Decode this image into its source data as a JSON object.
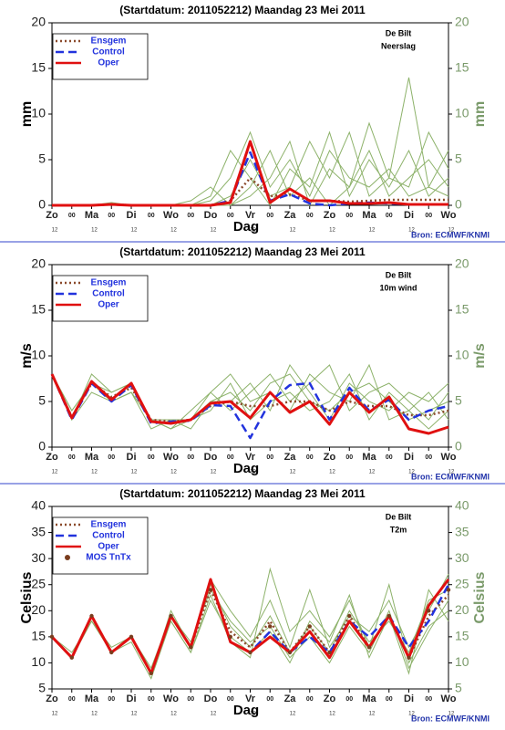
{
  "chart_data": [
    {
      "type": "line",
      "title": "(Startdatum: 2011052212)   Maandag   23 Mei       2011",
      "location": "De Bilt",
      "variable": "Neerslag",
      "ylabel": "mm",
      "xlabel": "Dag",
      "source": "Bron: ECMWF/KNMI",
      "x": [
        0,
        12,
        24,
        36,
        48,
        60,
        72,
        84,
        96,
        108,
        120,
        132,
        144,
        156,
        168,
        180,
        192,
        204,
        216,
        228,
        240
      ],
      "xlim": [
        0,
        240
      ],
      "xticks": [
        {
          "value": 0,
          "label": "Zo"
        },
        {
          "value": 12,
          "label": "00"
        },
        {
          "value": 24,
          "label": "Ma"
        },
        {
          "value": 36,
          "label": "00"
        },
        {
          "value": 48,
          "label": "Di"
        },
        {
          "value": 60,
          "label": "00"
        },
        {
          "value": 72,
          "label": "Wo"
        },
        {
          "value": 84,
          "label": "00"
        },
        {
          "value": 96,
          "label": "Do"
        },
        {
          "value": 108,
          "label": "00"
        },
        {
          "value": 120,
          "label": "Vr"
        },
        {
          "value": 132,
          "label": "00"
        },
        {
          "value": 144,
          "label": "Za"
        },
        {
          "value": 156,
          "label": "00"
        },
        {
          "value": 168,
          "label": "Zo"
        },
        {
          "value": 180,
          "label": "00"
        },
        {
          "value": 192,
          "label": "Ma"
        },
        {
          "value": 204,
          "label": "00"
        },
        {
          "value": 216,
          "label": "Di"
        },
        {
          "value": 228,
          "label": "00"
        },
        {
          "value": 240,
          "label": "Wo"
        }
      ],
      "hour_labels": [
        {
          "value": 0,
          "label": "12"
        },
        {
          "value": 24,
          "label": "12"
        },
        {
          "value": 48,
          "label": "12"
        },
        {
          "value": 72,
          "label": "12"
        },
        {
          "value": 96,
          "label": "12"
        },
        {
          "value": 120,
          "label": "12"
        },
        {
          "value": 144,
          "label": "12"
        },
        {
          "value": 168,
          "label": "12"
        },
        {
          "value": 192,
          "label": "12"
        },
        {
          "value": 216,
          "label": "12"
        },
        {
          "value": 240,
          "label": "12"
        }
      ],
      "ylim": [
        0,
        20
      ],
      "yticks": [
        0,
        5,
        10,
        15,
        20
      ],
      "y2lim": [
        0,
        20
      ],
      "y2ticks": [
        0,
        5,
        10,
        15,
        20
      ],
      "members": {
        "color": "#8db26a",
        "values": [
          [
            0,
            0,
            0,
            0,
            0,
            0,
            0,
            0,
            0.5,
            3,
            8,
            2,
            5,
            1,
            6,
            3,
            2,
            4,
            1,
            2,
            1
          ],
          [
            0,
            0,
            0,
            0.3,
            0,
            0,
            0,
            0,
            0,
            1,
            5,
            1,
            2,
            7,
            3,
            8,
            1,
            3,
            14,
            2,
            6
          ],
          [
            0,
            0,
            0,
            0,
            0,
            0,
            0,
            0,
            0,
            0,
            2,
            6,
            1,
            3,
            0,
            2,
            6,
            1,
            3,
            5,
            2
          ],
          [
            0,
            0,
            0,
            0,
            0,
            0,
            0,
            0,
            1,
            6,
            3,
            0,
            4,
            2,
            8,
            1,
            5,
            2,
            6,
            1,
            3
          ],
          [
            0,
            0,
            0,
            0,
            0,
            0,
            0,
            0.5,
            2,
            0,
            1,
            3,
            7,
            0,
            4,
            2,
            9,
            3,
            2,
            8,
            4
          ]
        ]
      },
      "series": [
        {
          "name": "Ensgem",
          "color": "#8b4a2b",
          "style": "dotted",
          "values": [
            0,
            0,
            0,
            0.1,
            0,
            0,
            0,
            0,
            0,
            0.5,
            3,
            1,
            1.2,
            0.5,
            0.5,
            0.4,
            0.5,
            0.6,
            0.6,
            0.6,
            0.6
          ]
        },
        {
          "name": "Control",
          "color": "#2233dd",
          "style": "dashed",
          "values": [
            0,
            0,
            0,
            0.1,
            0,
            0,
            0,
            0,
            0,
            0.5,
            5.8,
            0.5,
            1.2,
            0.2,
            0,
            0.2,
            0.3,
            0.2,
            0.1,
            0.1,
            0.1
          ]
        },
        {
          "name": "Oper",
          "color": "#e01010",
          "style": "solid",
          "values": [
            0,
            0,
            0,
            0.1,
            0,
            0,
            0,
            0,
            0,
            0.3,
            7,
            0.3,
            1.8,
            0.5,
            0.5,
            0.2,
            0.2,
            0.3,
            0.1,
            0.1,
            0.1
          ]
        }
      ]
    },
    {
      "type": "line",
      "title": "(Startdatum: 2011052212)   Maandag   23 Mei       2011",
      "location": "De Bilt",
      "variable": "10m wind",
      "ylabel": "m/s",
      "xlabel": "Dag",
      "source": "Bron: ECMWF/KNMI",
      "x": [
        0,
        12,
        24,
        36,
        48,
        60,
        72,
        84,
        96,
        108,
        120,
        132,
        144,
        156,
        168,
        180,
        192,
        204,
        216,
        228,
        240
      ],
      "xlim": [
        0,
        240
      ],
      "xticks": [
        {
          "value": 0,
          "label": "Zo"
        },
        {
          "value": 12,
          "label": "00"
        },
        {
          "value": 24,
          "label": "Ma"
        },
        {
          "value": 36,
          "label": "00"
        },
        {
          "value": 48,
          "label": "Di"
        },
        {
          "value": 60,
          "label": "00"
        },
        {
          "value": 72,
          "label": "Wo"
        },
        {
          "value": 84,
          "label": "00"
        },
        {
          "value": 96,
          "label": "Do"
        },
        {
          "value": 108,
          "label": "00"
        },
        {
          "value": 120,
          "label": "Vr"
        },
        {
          "value": 132,
          "label": "00"
        },
        {
          "value": 144,
          "label": "Za"
        },
        {
          "value": 156,
          "label": "00"
        },
        {
          "value": 168,
          "label": "Zo"
        },
        {
          "value": 180,
          "label": "00"
        },
        {
          "value": 192,
          "label": "Ma"
        },
        {
          "value": 204,
          "label": "00"
        },
        {
          "value": 216,
          "label": "Di"
        },
        {
          "value": 228,
          "label": "00"
        },
        {
          "value": 240,
          "label": "Wo"
        }
      ],
      "hour_labels": [
        {
          "value": 0,
          "label": "12"
        },
        {
          "value": 24,
          "label": "12"
        },
        {
          "value": 48,
          "label": "12"
        },
        {
          "value": 72,
          "label": "12"
        },
        {
          "value": 96,
          "label": "12"
        },
        {
          "value": 120,
          "label": "12"
        },
        {
          "value": 144,
          "label": "12"
        },
        {
          "value": 168,
          "label": "12"
        },
        {
          "value": 192,
          "label": "12"
        },
        {
          "value": 216,
          "label": "12"
        },
        {
          "value": 240,
          "label": "12"
        }
      ],
      "ylim": [
        0,
        20
      ],
      "yticks": [
        0,
        5,
        10,
        15,
        20
      ],
      "y2lim": [
        0,
        20
      ],
      "y2ticks": [
        0,
        5,
        10,
        15,
        20
      ],
      "members": {
        "color": "#8db26a",
        "values": [
          [
            8,
            3,
            7,
            5,
            6,
            3,
            3,
            3,
            5,
            6,
            4,
            7,
            8,
            5,
            4,
            6,
            7,
            5,
            3,
            4,
            5
          ],
          [
            8,
            4,
            7,
            6,
            7,
            3,
            2,
            4,
            6,
            4,
            6,
            8,
            5,
            7,
            9,
            4,
            6,
            7,
            5,
            3,
            6
          ],
          [
            8,
            3,
            6,
            5,
            6,
            2,
            3,
            3,
            4,
            7,
            3,
            5,
            6,
            4,
            5,
            8,
            3,
            6,
            4,
            6,
            3
          ],
          [
            8,
            3,
            8,
            6,
            7,
            3,
            3,
            2,
            5,
            5,
            7,
            4,
            9,
            6,
            3,
            7,
            5,
            4,
            6,
            5,
            7
          ],
          [
            8,
            4,
            7,
            5,
            6,
            3,
            2,
            3,
            6,
            8,
            5,
            6,
            4,
            8,
            6,
            5,
            9,
            3,
            4,
            2,
            4
          ]
        ]
      },
      "series": [
        {
          "name": "Ensgem",
          "color": "#8b4a2b",
          "style": "dotted",
          "values": [
            8,
            3.3,
            7,
            5.5,
            6.5,
            3,
            2.8,
            3,
            4.5,
            5,
            4.5,
            4.5,
            5,
            5,
            4,
            5,
            4.5,
            4.5,
            3.5,
            3.5,
            4
          ]
        },
        {
          "name": "Control",
          "color": "#2233dd",
          "style": "dashed",
          "values": [
            8,
            3,
            7,
            5,
            6.8,
            2.6,
            2.8,
            2.9,
            4.6,
            4.5,
            1,
            5,
            6.8,
            7,
            3,
            6.5,
            4,
            5.2,
            3,
            4,
            4.5
          ]
        },
        {
          "name": "Oper",
          "color": "#e01010",
          "style": "solid",
          "values": [
            8,
            3.2,
            7.2,
            5.2,
            7,
            2.8,
            2.6,
            3,
            4.8,
            5,
            3.2,
            6,
            3.8,
            5,
            2.5,
            6,
            3.8,
            5.5,
            2,
            1.5,
            2.2
          ]
        }
      ]
    },
    {
      "type": "line",
      "title": "(Startdatum: 2011052212)   Maandag   23 Mei       2011",
      "location": "De Bilt",
      "variable": "T2m",
      "ylabel": "Celsius",
      "xlabel": "Dag",
      "source": "Bron: ECMWF/KNMI",
      "x": [
        0,
        12,
        24,
        36,
        48,
        60,
        72,
        84,
        96,
        108,
        120,
        132,
        144,
        156,
        168,
        180,
        192,
        204,
        216,
        228,
        240
      ],
      "xlim": [
        0,
        240
      ],
      "xticks": [
        {
          "value": 0,
          "label": "Zo"
        },
        {
          "value": 12,
          "label": "00"
        },
        {
          "value": 24,
          "label": "Ma"
        },
        {
          "value": 36,
          "label": "00"
        },
        {
          "value": 48,
          "label": "Di"
        },
        {
          "value": 60,
          "label": "00"
        },
        {
          "value": 72,
          "label": "Wo"
        },
        {
          "value": 84,
          "label": "00"
        },
        {
          "value": 96,
          "label": "Do"
        },
        {
          "value": 108,
          "label": "00"
        },
        {
          "value": 120,
          "label": "Vr"
        },
        {
          "value": 132,
          "label": "00"
        },
        {
          "value": 144,
          "label": "Za"
        },
        {
          "value": 156,
          "label": "00"
        },
        {
          "value": 168,
          "label": "Zo"
        },
        {
          "value": 180,
          "label": "00"
        },
        {
          "value": 192,
          "label": "Ma"
        },
        {
          "value": 204,
          "label": "00"
        },
        {
          "value": 216,
          "label": "Di"
        },
        {
          "value": 228,
          "label": "00"
        },
        {
          "value": 240,
          "label": "Wo"
        }
      ],
      "hour_labels": [
        {
          "value": 0,
          "label": "12"
        },
        {
          "value": 24,
          "label": "12"
        },
        {
          "value": 48,
          "label": "12"
        },
        {
          "value": 72,
          "label": "12"
        },
        {
          "value": 96,
          "label": "12"
        },
        {
          "value": 120,
          "label": "12"
        },
        {
          "value": 144,
          "label": "12"
        },
        {
          "value": 168,
          "label": "12"
        },
        {
          "value": 192,
          "label": "12"
        },
        {
          "value": 216,
          "label": "12"
        },
        {
          "value": 240,
          "label": "12"
        }
      ],
      "ylim": [
        5,
        40
      ],
      "yticks": [
        5,
        10,
        15,
        20,
        25,
        30,
        35,
        40
      ],
      "y2lim": [
        5,
        40
      ],
      "y2ticks": [
        5,
        10,
        15,
        20,
        25,
        30,
        35,
        40
      ],
      "members": {
        "color": "#8db26a",
        "values": [
          [
            15,
            11,
            19,
            12,
            15,
            8,
            20,
            13,
            25,
            17,
            13,
            19,
            12,
            17,
            12,
            20,
            14,
            18,
            12,
            22,
            24
          ],
          [
            15,
            11,
            19,
            12,
            14,
            7,
            18,
            12,
            23,
            14,
            11,
            28,
            16,
            20,
            15,
            22,
            13,
            25,
            10,
            17,
            20
          ],
          [
            15,
            12,
            18,
            12,
            15,
            9,
            19,
            14,
            24,
            18,
            14,
            17,
            11,
            15,
            10,
            17,
            12,
            20,
            9,
            16,
            22
          ],
          [
            15,
            11,
            19,
            12,
            15,
            8,
            19,
            13,
            26,
            20,
            15,
            22,
            13,
            24,
            13,
            19,
            16,
            22,
            13,
            20,
            27
          ],
          [
            15,
            11,
            18,
            13,
            15,
            8,
            18,
            12,
            22,
            15,
            12,
            16,
            10,
            18,
            14,
            23,
            11,
            19,
            8,
            24,
            18
          ]
        ]
      },
      "series": [
        {
          "name": "Ensgem",
          "color": "#8b4a2b",
          "style": "dotted",
          "values": [
            15,
            11,
            19,
            12,
            15,
            8,
            19,
            13,
            24,
            16,
            13,
            18,
            12,
            17,
            12,
            19,
            13,
            19,
            11,
            19,
            23
          ]
        },
        {
          "name": "Control",
          "color": "#2233dd",
          "style": "dashed",
          "values": [
            15,
            11,
            19,
            12,
            15,
            8,
            19,
            13,
            26,
            14,
            12,
            16,
            12,
            15,
            12,
            18,
            15,
            19,
            13,
            18,
            25
          ]
        },
        {
          "name": "Oper",
          "color": "#e01010",
          "style": "solid",
          "values": [
            15,
            11,
            19,
            12,
            15,
            8,
            19,
            13,
            26,
            14,
            12,
            15,
            12,
            16,
            11,
            18,
            13,
            19,
            11,
            21,
            26
          ]
        },
        {
          "name": "MOS TnTx",
          "color": "#7a3d1e",
          "style": "dot",
          "values": [
            15,
            11,
            19,
            12,
            15,
            8,
            19,
            13,
            24,
            15,
            12,
            17,
            12,
            17,
            12,
            19,
            13,
            19,
            11,
            20,
            24
          ]
        }
      ]
    }
  ]
}
